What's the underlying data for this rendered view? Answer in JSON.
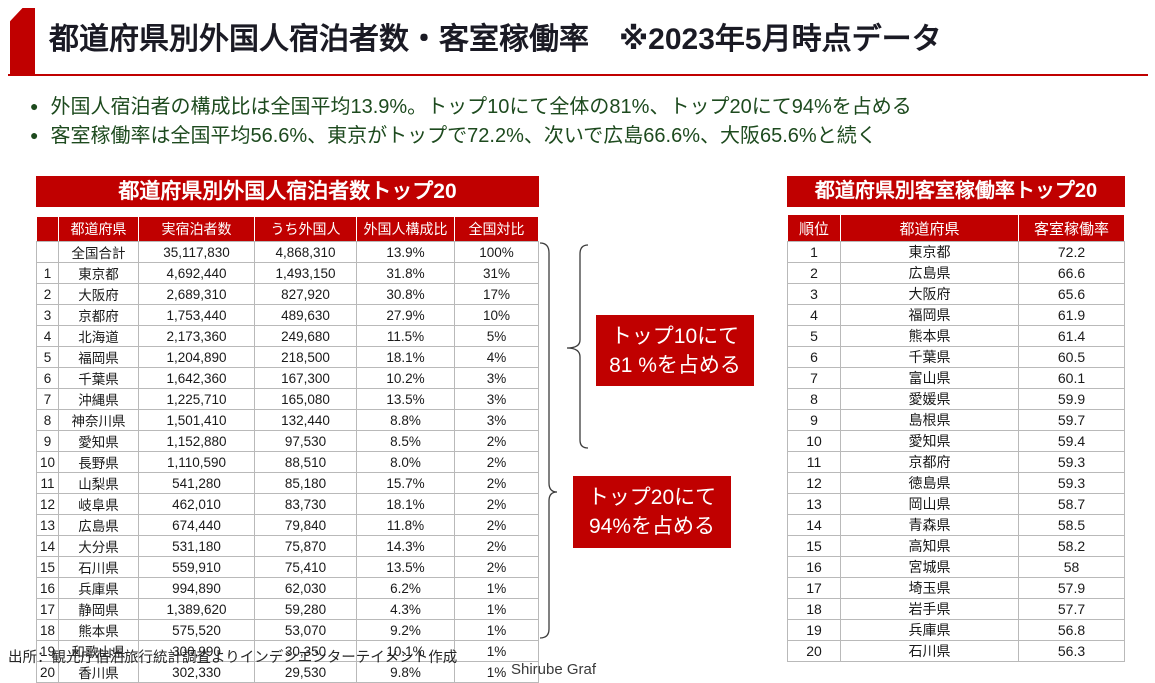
{
  "colors": {
    "accent_red": "#C00000",
    "bullet_green": "#1D4A1E"
  },
  "header": {
    "title": "都道府県別外国人宿泊者数・客室稼働率　※2023年5月時点データ"
  },
  "bullets": [
    "外国人宿泊者の構成比は全国平均13.9%。トップ10にて全体の81%、トップ20にて94%を占める",
    "客室稼働率は全国平均56.6%、東京がトップで72.2%、次いで広島66.6%、大阪65.6%と続く"
  ],
  "left_table": {
    "title": "都道府県別外国人宿泊者数トップ20",
    "headers": [
      "",
      "都道府県",
      "実宿泊者数",
      "うち外国人",
      "外国人構成比",
      "全国対比"
    ],
    "total_row": [
      "",
      "全国合計",
      "35,117,830",
      "4,868,310",
      "13.9%",
      "100%"
    ],
    "rows": [
      [
        "1",
        "東京都",
        "4,692,440",
        "1,493,150",
        "31.8%",
        "31%"
      ],
      [
        "2",
        "大阪府",
        "2,689,310",
        "827,920",
        "30.8%",
        "17%"
      ],
      [
        "3",
        "京都府",
        "1,753,440",
        "489,630",
        "27.9%",
        "10%"
      ],
      [
        "4",
        "北海道",
        "2,173,360",
        "249,680",
        "11.5%",
        "5%"
      ],
      [
        "5",
        "福岡県",
        "1,204,890",
        "218,500",
        "18.1%",
        "4%"
      ],
      [
        "6",
        "千葉県",
        "1,642,360",
        "167,300",
        "10.2%",
        "3%"
      ],
      [
        "7",
        "沖縄県",
        "1,225,710",
        "165,080",
        "13.5%",
        "3%"
      ],
      [
        "8",
        "神奈川県",
        "1,501,410",
        "132,440",
        "8.8%",
        "3%"
      ],
      [
        "9",
        "愛知県",
        "1,152,880",
        "97,530",
        "8.5%",
        "2%"
      ],
      [
        "10",
        "長野県",
        "1,110,590",
        "88,510",
        "8.0%",
        "2%"
      ],
      [
        "11",
        "山梨県",
        "541,280",
        "85,180",
        "15.7%",
        "2%"
      ],
      [
        "12",
        "岐阜県",
        "462,010",
        "83,730",
        "18.1%",
        "2%"
      ],
      [
        "13",
        "広島県",
        "674,440",
        "79,840",
        "11.8%",
        "2%"
      ],
      [
        "14",
        "大分県",
        "531,180",
        "75,870",
        "14.3%",
        "2%"
      ],
      [
        "15",
        "石川県",
        "559,910",
        "75,410",
        "13.5%",
        "2%"
      ],
      [
        "16",
        "兵庫県",
        "994,890",
        "62,030",
        "6.2%",
        "1%"
      ],
      [
        "17",
        "静岡県",
        "1,389,620",
        "59,280",
        "4.3%",
        "1%"
      ],
      [
        "18",
        "熊本県",
        "575,520",
        "53,070",
        "9.2%",
        "1%"
      ],
      [
        "19",
        "和歌山県",
        "300,990",
        "30,350",
        "10.1%",
        "1%"
      ],
      [
        "20",
        "香川県",
        "302,330",
        "29,530",
        "9.8%",
        "1%"
      ]
    ]
  },
  "right_table": {
    "title": "都道府県別客室稼働率トップ20",
    "headers": [
      "順位",
      "都道府県",
      "客室稼働率"
    ],
    "rows": [
      [
        "1",
        "東京都",
        "72.2"
      ],
      [
        "2",
        "広島県",
        "66.6"
      ],
      [
        "3",
        "大阪府",
        "65.6"
      ],
      [
        "4",
        "福岡県",
        "61.9"
      ],
      [
        "5",
        "熊本県",
        "61.4"
      ],
      [
        "6",
        "千葉県",
        "60.5"
      ],
      [
        "7",
        "富山県",
        "60.1"
      ],
      [
        "8",
        "愛媛県",
        "59.9"
      ],
      [
        "9",
        "島根県",
        "59.7"
      ],
      [
        "10",
        "愛知県",
        "59.4"
      ],
      [
        "11",
        "京都府",
        "59.3"
      ],
      [
        "12",
        "徳島県",
        "59.3"
      ],
      [
        "13",
        "岡山県",
        "58.7"
      ],
      [
        "14",
        "青森県",
        "58.5"
      ],
      [
        "15",
        "高知県",
        "58.2"
      ],
      [
        "16",
        "宮城県",
        "58"
      ],
      [
        "17",
        "埼玉県",
        "57.9"
      ],
      [
        "18",
        "岩手県",
        "57.7"
      ],
      [
        "19",
        "兵庫県",
        "56.8"
      ],
      [
        "20",
        "石川県",
        "56.3"
      ]
    ]
  },
  "callouts": [
    {
      "line1": "トップ10にて",
      "line2": "81 %を占める"
    },
    {
      "line1": "トップ20にて",
      "line2": "94%を占める"
    }
  ],
  "footer": {
    "source": "出所：観光庁宿泊旅行統計調査よりインデンエンターテイメント作成",
    "partial": "Shirube Graf"
  }
}
